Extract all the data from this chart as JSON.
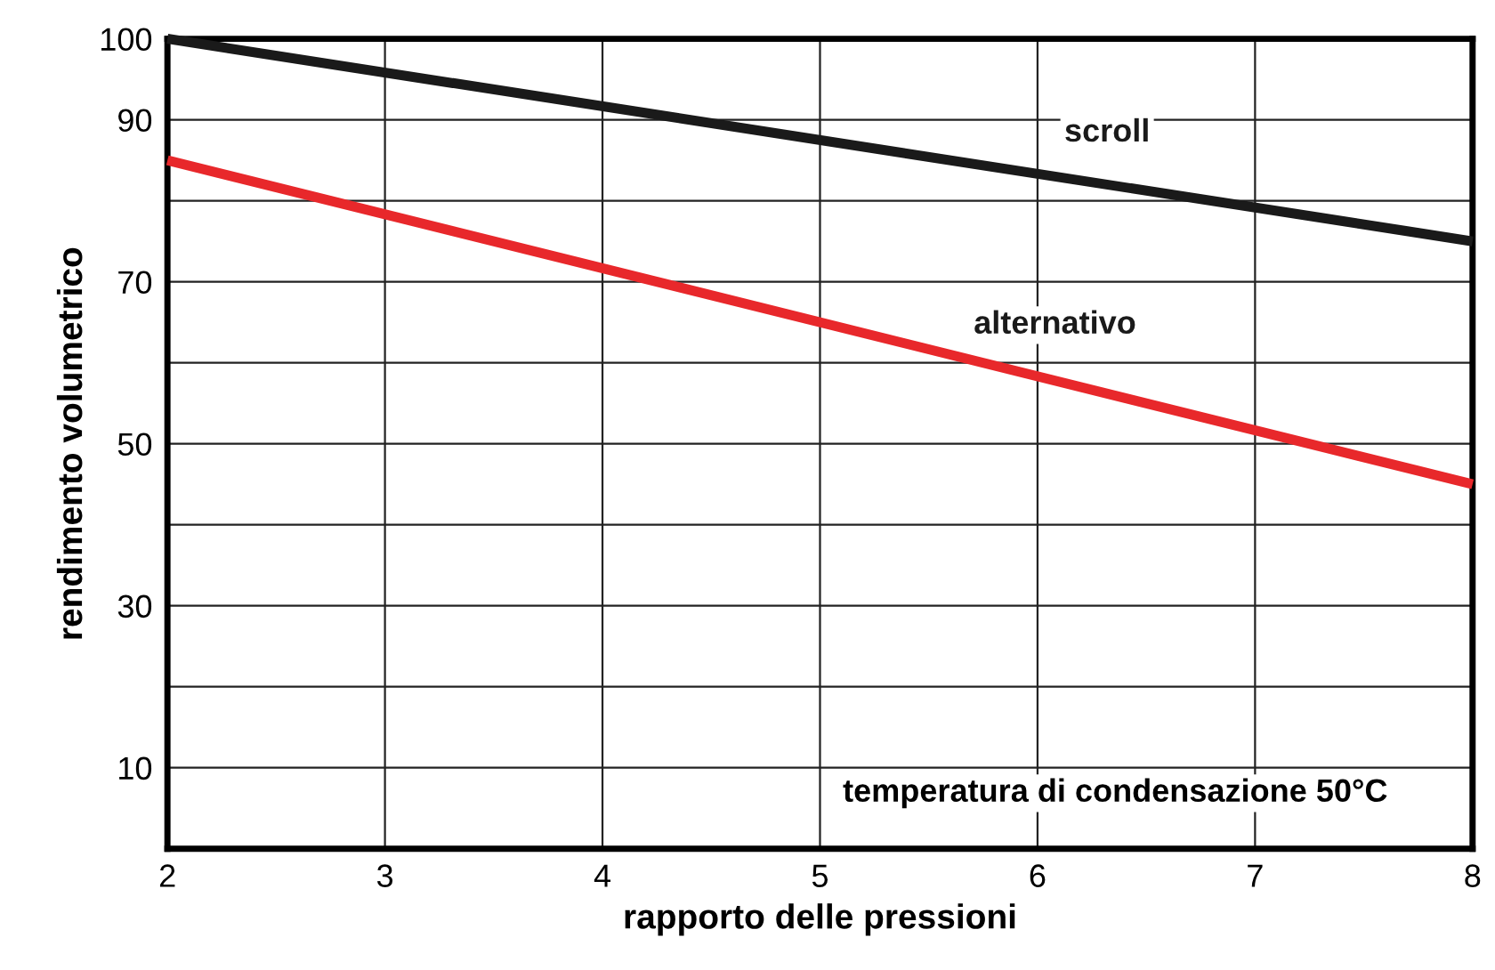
{
  "chart_data": {
    "type": "line",
    "xlabel": "rapporto delle pressioni",
    "ylabel": "rendimento volumetrico",
    "x": [
      2,
      8
    ],
    "series": [
      {
        "name": "scroll",
        "color": "#1a1a1a",
        "values": [
          100,
          75
        ]
      },
      {
        "name": "alternativo",
        "color": "#e8282b",
        "values": [
          85,
          45
        ]
      }
    ],
    "xlim": [
      2,
      8
    ],
    "xticks": [
      2,
      3,
      4,
      5,
      6,
      7,
      8
    ],
    "ylim": [
      0,
      100
    ],
    "yticks": [
      {
        "value": 0,
        "label": null
      },
      10,
      {
        "value": 20,
        "label": null
      },
      30,
      {
        "value": 40,
        "label": null
      },
      50,
      {
        "value": 60,
        "label": null
      },
      70,
      {
        "value": 80,
        "label": null
      },
      90,
      100
    ],
    "grid": true,
    "legend": false,
    "marker": "none",
    "line_style": "solid",
    "annotations": [
      "temperatura di condensazione 50°C"
    ]
  }
}
